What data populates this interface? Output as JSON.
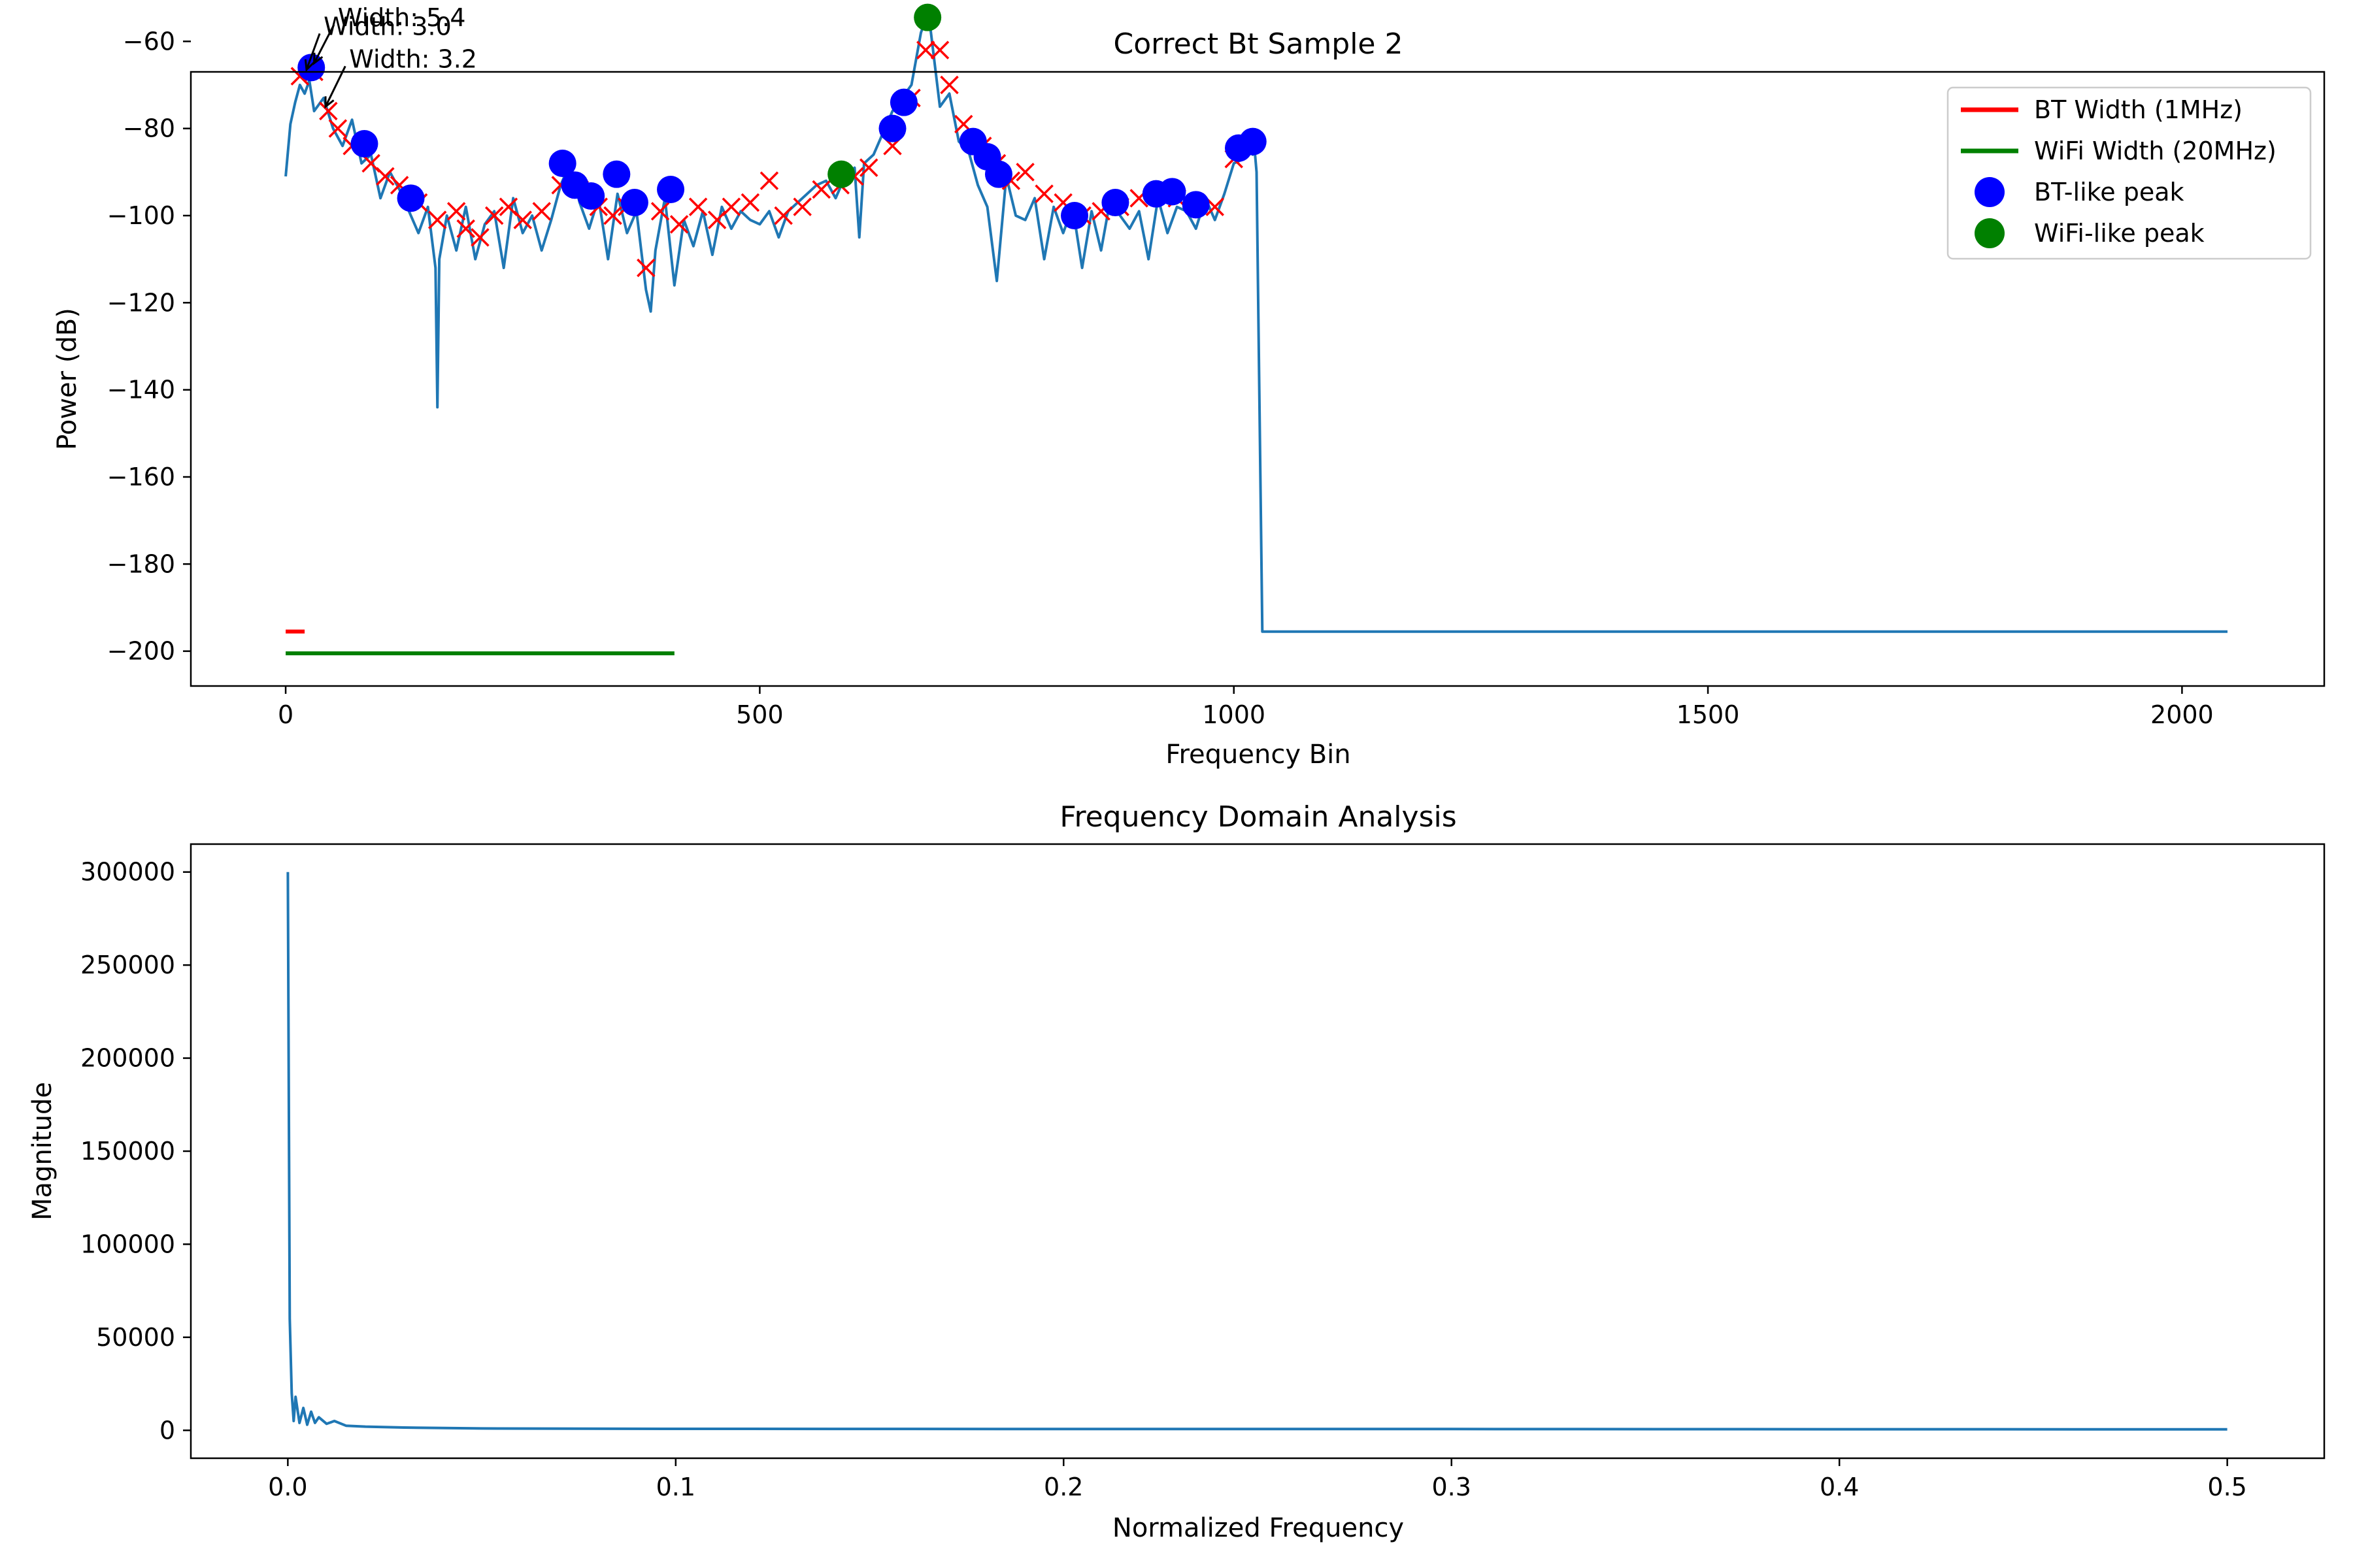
{
  "chart_data": [
    {
      "type": "line",
      "title": "Correct Bt Sample 2",
      "xlabel": "Frequency Bin",
      "ylabel": "Power (dB)",
      "xlim": [
        -100,
        2150
      ],
      "ylim": [
        -208,
        -67
      ],
      "xticks": [
        0,
        500,
        1000,
        1500,
        2000
      ],
      "yticks": [
        -60,
        -80,
        -100,
        -120,
        -140,
        -160,
        -180,
        -200
      ],
      "grid": false,
      "legend_position": "top-right",
      "colors": {
        "spectrum": "#1f77b4",
        "peak_marker": "#ff0000",
        "bt_peak": "#0000ff",
        "wifi_peak": "#008000",
        "bt_width": "#ff0000",
        "wifi_width": "#008000"
      },
      "series": [
        {
          "name": "spectrum",
          "x": [
            0,
            5,
            10,
            15,
            20,
            25,
            30,
            40,
            50,
            60,
            70,
            80,
            90,
            100,
            110,
            120,
            130,
            140,
            150,
            158,
            160,
            162,
            170,
            180,
            190,
            200,
            210,
            220,
            230,
            240,
            250,
            260,
            270,
            280,
            290,
            300,
            310,
            320,
            330,
            340,
            350,
            360,
            370,
            380,
            385,
            390,
            400,
            410,
            420,
            430,
            440,
            450,
            460,
            470,
            480,
            490,
            500,
            510,
            520,
            530,
            540,
            550,
            560,
            570,
            580,
            590,
            600,
            605,
            610,
            620,
            630,
            640,
            650,
            660,
            670,
            675,
            680,
            690,
            700,
            710,
            720,
            730,
            740,
            750,
            760,
            770,
            780,
            790,
            800,
            810,
            820,
            830,
            840,
            850,
            860,
            870,
            880,
            890,
            900,
            910,
            920,
            930,
            940,
            950,
            960,
            970,
            980,
            990,
            1000,
            1010,
            1018,
            1020,
            1022,
            1024,
            1030,
            1500,
            2048
          ],
          "y": [
            -91,
            -79,
            -74,
            -70,
            -72,
            -69,
            -76,
            -73,
            -80,
            -84,
            -78,
            -88,
            -86,
            -96,
            -90,
            -94,
            -99,
            -104,
            -98,
            -112,
            -144,
            -110,
            -100,
            -108,
            -98,
            -110,
            -102,
            -99,
            -112,
            -96,
            -104,
            -100,
            -108,
            -101,
            -93,
            -88,
            -97,
            -103,
            -96,
            -110,
            -95,
            -104,
            -99,
            -117,
            -122,
            -108,
            -96,
            -116,
            -101,
            -107,
            -99,
            -109,
            -98,
            -103,
            -99,
            -101,
            -102,
            -99,
            -105,
            -99,
            -97,
            -95,
            -93,
            -92,
            -96,
            -91,
            -89,
            -105,
            -88,
            -86,
            -81,
            -76,
            -73,
            -70,
            -58,
            -55,
            -57,
            -75,
            -72,
            -83,
            -85,
            -93,
            -98,
            -115,
            -91,
            -100,
            -101,
            -96,
            -110,
            -98,
            -104,
            -98,
            -112,
            -99,
            -108,
            -96,
            -100,
            -103,
            -99,
            -110,
            -96,
            -104,
            -98,
            -99,
            -103,
            -96,
            -101,
            -95,
            -88,
            -87,
            -84,
            -86,
            -85,
            -90,
            -195.5,
            -195.5,
            -195.5
          ]
        },
        {
          "name": "peak_markers",
          "x": [
            15,
            30,
            45,
            55,
            70,
            90,
            105,
            120,
            140,
            160,
            180,
            190,
            205,
            220,
            235,
            250,
            270,
            290,
            310,
            330,
            345,
            360,
            380,
            395,
            415,
            435,
            455,
            470,
            490,
            510,
            525,
            545,
            565,
            585,
            600,
            615,
            640,
            660,
            675,
            690,
            700,
            715,
            735,
            750,
            765,
            780,
            800,
            820,
            840,
            860,
            880,
            900,
            920,
            940,
            960,
            980,
            1000
          ],
          "y": [
            -68,
            -67,
            -76,
            -80,
            -84,
            -88,
            -91,
            -93,
            -97,
            -101,
            -99,
            -103,
            -105,
            -100,
            -98,
            -101,
            -99,
            -93,
            -94,
            -98,
            -100,
            -98,
            -112,
            -99,
            -102,
            -98,
            -101,
            -98,
            -97,
            -92,
            -100,
            -98,
            -94,
            -93,
            -91,
            -89,
            -84,
            -73,
            -62,
            -62,
            -70,
            -79,
            -84,
            -88,
            -92,
            -90,
            -95,
            -97,
            -100,
            -99,
            -98,
            -96,
            -95,
            -96,
            -97,
            -98,
            -87
          ]
        }
      ],
      "bt_peaks": [
        {
          "x": 27,
          "y": -66
        },
        {
          "x": 83,
          "y": -83.5
        },
        {
          "x": 132,
          "y": -96
        },
        {
          "x": 292,
          "y": -88
        },
        {
          "x": 305,
          "y": -93
        },
        {
          "x": 322,
          "y": -95.5
        },
        {
          "x": 349,
          "y": -90.5
        },
        {
          "x": 368,
          "y": -97
        },
        {
          "x": 406,
          "y": -94
        },
        {
          "x": 640,
          "y": -80
        },
        {
          "x": 652,
          "y": -74
        },
        {
          "x": 725,
          "y": -83
        },
        {
          "x": 740,
          "y": -86.5
        },
        {
          "x": 752,
          "y": -90.5
        },
        {
          "x": 832,
          "y": -100
        },
        {
          "x": 875,
          "y": -97
        },
        {
          "x": 918,
          "y": -95
        },
        {
          "x": 935,
          "y": -94.5
        },
        {
          "x": 960,
          "y": -97.5
        },
        {
          "x": 1005,
          "y": -84.5
        },
        {
          "x": 1020,
          "y": -83
        }
      ],
      "wifi_peaks": [
        {
          "x": 586,
          "y": -90.5
        },
        {
          "x": 677,
          "y": -54.5
        }
      ],
      "bt_width_line": {
        "name": "BT Width (1MHz)",
        "x": [
          0,
          20
        ],
        "y": -195.5
      },
      "wifi_width_line": {
        "name": "WiFi Width (20MHz)",
        "x": [
          0,
          410
        ],
        "y": -200.5
      },
      "annotations": [
        {
          "text": "Width: 5.4",
          "x": 55,
          "y": -56.5,
          "arrow_to_x": 30,
          "arrow_to_y": -65
        },
        {
          "text": "Width: 3.0",
          "x": 40,
          "y": -58.5,
          "arrow_to_x": 22,
          "arrow_to_y": -66.5
        },
        {
          "text": "Width: 3.2",
          "x": 67,
          "y": -66,
          "arrow_to_x": 42,
          "arrow_to_y": -75
        }
      ],
      "legend": [
        "BT Width (1MHz)",
        "WiFi Width (20MHz)",
        "BT-like peak",
        "WiFi-like peak"
      ]
    },
    {
      "type": "line",
      "title": "Frequency Domain Analysis",
      "xlabel": "Normalized Frequency",
      "ylabel": "Magnitude",
      "xlim": [
        -0.025,
        0.525
      ],
      "ylim": [
        -15000,
        315000
      ],
      "xticks": [
        0.0,
        0.1,
        0.2,
        0.3,
        0.4,
        0.5
      ],
      "xtick_labels": [
        "0.0",
        "0.1",
        "0.2",
        "0.3",
        "0.4",
        "0.5"
      ],
      "yticks": [
        0,
        50000,
        100000,
        150000,
        200000,
        250000,
        300000
      ],
      "ytick_labels": [
        "0",
        "50000",
        "100000",
        "150000",
        "200000",
        "250000",
        "300000"
      ],
      "grid": false,
      "colors": {
        "line": "#1f77b4"
      },
      "series": [
        {
          "name": "magnitude",
          "x": [
            0.0,
            0.0005,
            0.001,
            0.0015,
            0.002,
            0.003,
            0.004,
            0.005,
            0.006,
            0.007,
            0.008,
            0.01,
            0.012,
            0.015,
            0.02,
            0.03,
            0.05,
            0.1,
            0.2,
            0.3,
            0.4,
            0.5
          ],
          "y": [
            300000,
            60000,
            20000,
            5000,
            18000,
            4000,
            12000,
            3000,
            10000,
            4000,
            7000,
            3500,
            5000,
            2500,
            2000,
            1500,
            1000,
            800,
            700,
            700,
            600,
            500
          ]
        }
      ]
    }
  ]
}
